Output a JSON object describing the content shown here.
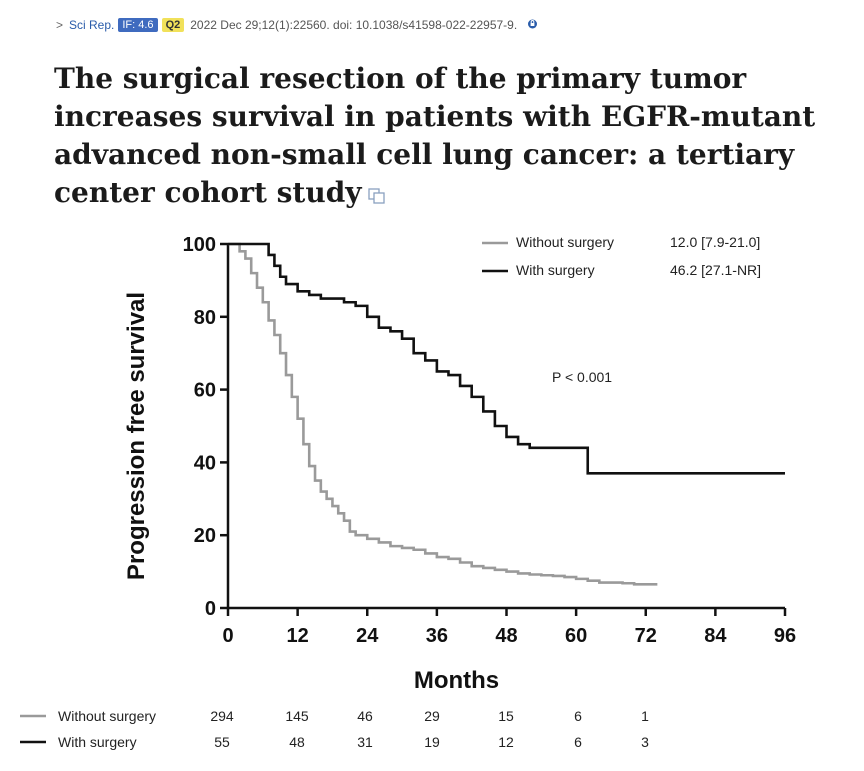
{
  "citation": {
    "journal": "Sci Rep.",
    "impact_factor": "IF: 4.6",
    "quartile": "Q2",
    "details": "2022 Dec 29;12(1):22560. doi: 10.1038/s41598-022-22957-9."
  },
  "article": {
    "title": "The surgical resection of the primary tumor increases survival in patients with EGFR-mutant advanced non-small cell lung cancer: a tertiary center cohort study"
  },
  "colors": {
    "with_surgery": "#111111",
    "without_surgery": "#9a9a9a",
    "accent": "#3f6bbf"
  },
  "chart_data": {
    "type": "line",
    "title": "",
    "xlabel": "Months",
    "ylabel": "Progression free survival",
    "xlim": [
      0,
      96
    ],
    "ylim": [
      0,
      100
    ],
    "xticks": [
      0,
      12,
      24,
      36,
      48,
      60,
      72,
      84,
      96
    ],
    "yticks": [
      0,
      20,
      40,
      60,
      80,
      100
    ],
    "grid": false,
    "legend_position": "top-right",
    "annotation": "P < 0.001",
    "series": [
      {
        "name": "Without surgery",
        "stat": "12.0 [7.9-21.0]",
        "color": "#9a9a9a",
        "x": [
          0,
          2,
          3,
          4,
          5,
          6,
          7,
          8,
          9,
          10,
          11,
          12,
          13,
          14,
          15,
          16,
          17,
          18,
          19,
          20,
          21,
          22,
          24,
          26,
          28,
          30,
          32,
          34,
          36,
          38,
          40,
          42,
          44,
          46,
          48,
          50,
          52,
          54,
          56,
          58,
          60,
          62,
          64,
          66,
          68,
          70,
          72,
          74
        ],
        "y": [
          100,
          98,
          96,
          92,
          88,
          84,
          79,
          75,
          70,
          64,
          58,
          52,
          45,
          39,
          35,
          32,
          30,
          28,
          26,
          24,
          21,
          20,
          19,
          18,
          17,
          16.5,
          16,
          15,
          14,
          13.5,
          12.5,
          11.5,
          11,
          10.5,
          10,
          9.5,
          9.2,
          9,
          8.8,
          8.5,
          8,
          7.5,
          7,
          7,
          6.8,
          6.5,
          6.5,
          6.5
        ]
      },
      {
        "name": "With surgery",
        "stat": "46.2 [27.1-NR]",
        "color": "#111111",
        "x": [
          0,
          6,
          7,
          8,
          9,
          10,
          12,
          14,
          16,
          18,
          20,
          22,
          24,
          26,
          28,
          30,
          32,
          34,
          36,
          38,
          40,
          42,
          44,
          46,
          48,
          50,
          52,
          54,
          56,
          58,
          60,
          62,
          64,
          66,
          96
        ],
        "y": [
          100,
          100,
          97,
          94,
          91,
          89,
          87,
          86,
          85,
          85,
          84,
          83,
          80,
          77,
          76,
          74,
          70,
          68,
          65,
          64,
          61,
          58,
          54,
          50,
          47,
          45,
          44,
          44,
          44,
          44,
          44,
          37,
          37,
          37,
          37
        ]
      }
    ]
  },
  "risk_table": {
    "times": [
      0,
      12,
      24,
      36,
      48,
      60,
      72
    ],
    "rows": [
      {
        "label": "Without surgery",
        "counts": [
          "294",
          "145",
          "46",
          "29",
          "15",
          "6",
          "1"
        ]
      },
      {
        "label": "With surgery",
        "counts": [
          "55",
          "48",
          "31",
          "19",
          "12",
          "6",
          "3"
        ]
      }
    ]
  }
}
